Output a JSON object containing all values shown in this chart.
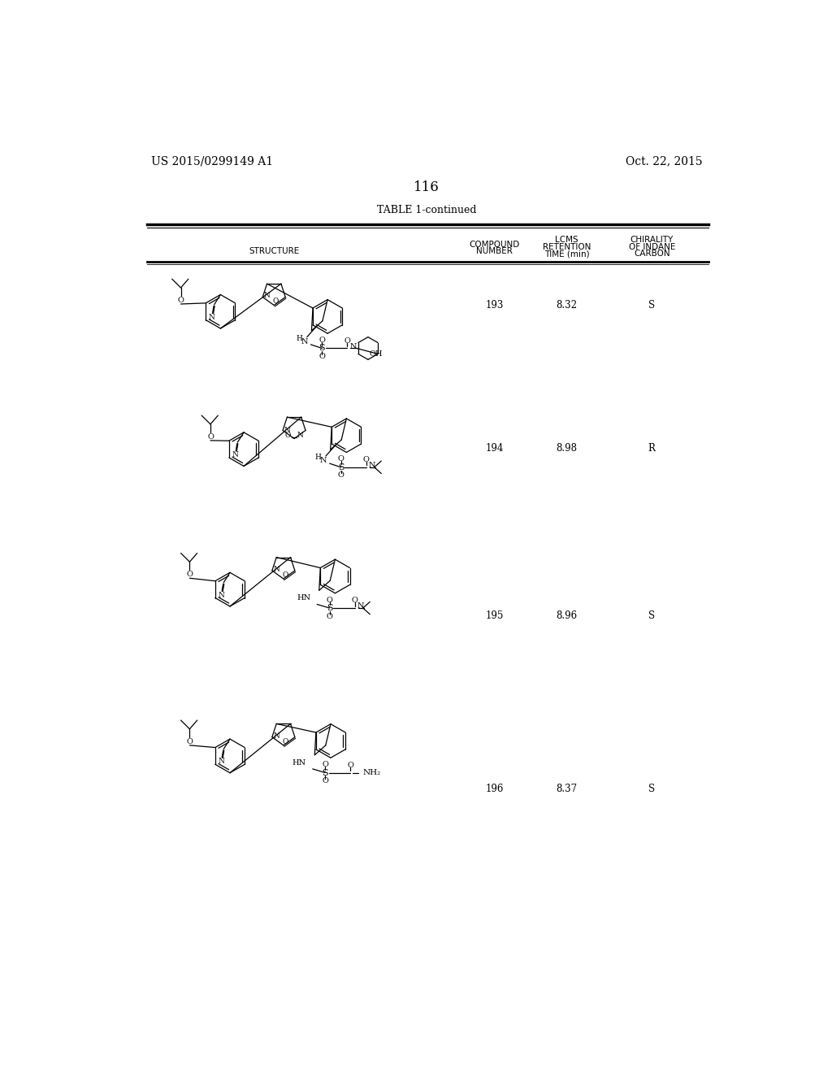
{
  "page_number": "116",
  "patent_number": "US 2015/0299149 A1",
  "patent_date": "Oct. 22, 2015",
  "table_title": "TABLE 1-continued",
  "rows": [
    {
      "compound": "193",
      "retention": "8.32",
      "chirality": "S"
    },
    {
      "compound": "194",
      "retention": "8.98",
      "chirality": "R"
    },
    {
      "compound": "195",
      "retention": "8.96",
      "chirality": "S"
    },
    {
      "compound": "196",
      "retention": "8.37",
      "chirality": "S"
    }
  ],
  "bg_color": "#ffffff",
  "text_color": "#000000"
}
